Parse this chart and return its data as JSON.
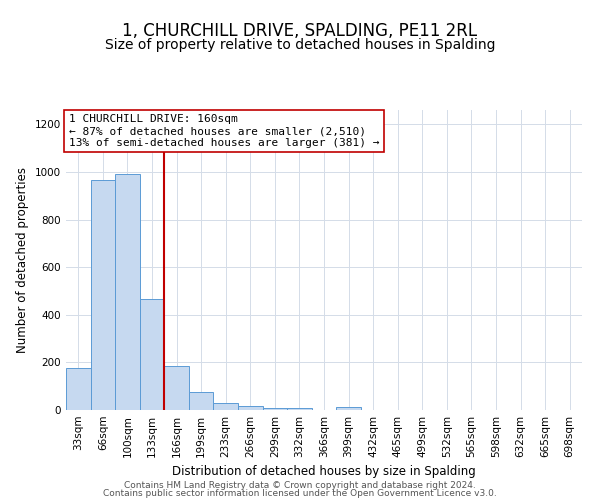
{
  "title": "1, CHURCHILL DRIVE, SPALDING, PE11 2RL",
  "subtitle": "Size of property relative to detached houses in Spalding",
  "xlabel": "Distribution of detached houses by size in Spalding",
  "ylabel": "Number of detached properties",
  "bin_labels": [
    "33sqm",
    "66sqm",
    "100sqm",
    "133sqm",
    "166sqm",
    "199sqm",
    "233sqm",
    "266sqm",
    "299sqm",
    "332sqm",
    "366sqm",
    "399sqm",
    "432sqm",
    "465sqm",
    "499sqm",
    "532sqm",
    "565sqm",
    "598sqm",
    "632sqm",
    "665sqm",
    "698sqm"
  ],
  "bar_heights": [
    175,
    965,
    990,
    465,
    185,
    75,
    28,
    18,
    10,
    7,
    0,
    12,
    0,
    0,
    0,
    0,
    0,
    0,
    0,
    0,
    0
  ],
  "bar_color": "#c6d9f0",
  "bar_edge_color": "#5b9bd5",
  "red_line_color": "#c00000",
  "red_line_x": 3.5,
  "annotation_line1": "1 CHURCHILL DRIVE: 160sqm",
  "annotation_line2": "← 87% of detached houses are smaller (2,510)",
  "annotation_line3": "13% of semi-detached houses are larger (381) →",
  "ylim": [
    0,
    1260
  ],
  "yticks": [
    0,
    200,
    400,
    600,
    800,
    1000,
    1200
  ],
  "footer_text1": "Contains HM Land Registry data © Crown copyright and database right 2024.",
  "footer_text2": "Contains public sector information licensed under the Open Government Licence v3.0.",
  "title_fontsize": 12,
  "subtitle_fontsize": 10,
  "axis_label_fontsize": 8.5,
  "tick_fontsize": 7.5,
  "annotation_fontsize": 8,
  "footer_fontsize": 6.5,
  "grid_color": "#d4dce8"
}
